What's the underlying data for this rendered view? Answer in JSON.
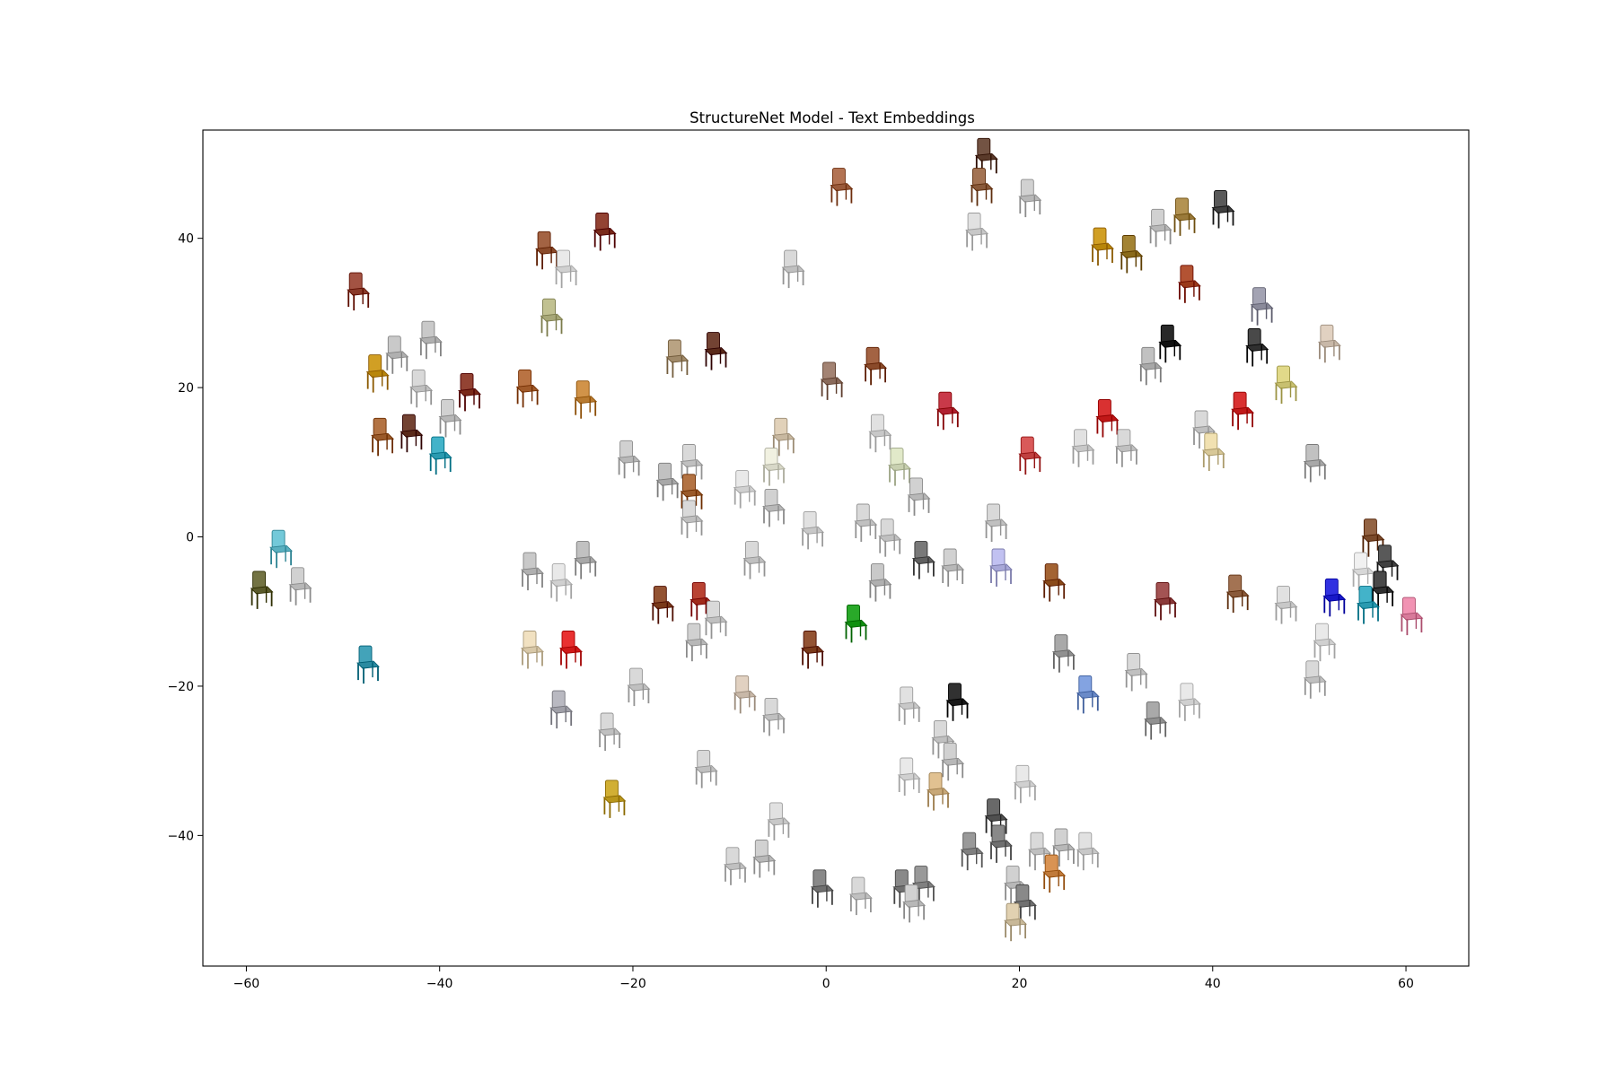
{
  "chart_data": {
    "type": "scatter",
    "title": "StructureNet Model - Text Embeddings",
    "xlabel": "",
    "ylabel": "",
    "xlim": [
      -64.5,
      66.5
    ],
    "ylim": [
      -57.5,
      54.5
    ],
    "xticks": [
      -60,
      -40,
      -20,
      0,
      20,
      40,
      60
    ],
    "yticks": [
      -40,
      -20,
      0,
      20,
      40
    ],
    "xtick_labels": [
      "−60",
      "−40",
      "−20",
      "0",
      "20",
      "40",
      "60"
    ],
    "ytick_labels": [
      "−40",
      "−20",
      "0",
      "20",
      "40"
    ],
    "grid": false,
    "legend": "none",
    "marker": "chair thumbnail image",
    "series": [
      {
        "points": [
          {
            "x": 1.5,
            "y": 46.5,
            "color": "#9a5a3a"
          },
          {
            "x": 16.5,
            "y": 50.5,
            "color": "#5a3a2a"
          },
          {
            "x": 16.0,
            "y": 46.5,
            "color": "#8a5a3a"
          },
          {
            "x": 21.0,
            "y": 45.0,
            "color": "#b8b8b8"
          },
          {
            "x": 15.5,
            "y": 40.5,
            "color": "#c8c8c8"
          },
          {
            "x": -3.5,
            "y": 35.5,
            "color": "#c0c0c0"
          },
          {
            "x": -29.0,
            "y": 38.0,
            "color": "#8a4a2a"
          },
          {
            "x": -23.0,
            "y": 40.5,
            "color": "#7a2a1a"
          },
          {
            "x": -27.0,
            "y": 35.5,
            "color": "#d0d0d0"
          },
          {
            "x": -28.5,
            "y": 29.0,
            "color": "#a8a878"
          },
          {
            "x": -48.5,
            "y": 32.5,
            "color": "#8a3a2a"
          },
          {
            "x": -44.5,
            "y": 24.0,
            "color": "#b0b0b0"
          },
          {
            "x": -41.0,
            "y": 26.0,
            "color": "#b0b0b0"
          },
          {
            "x": -46.5,
            "y": 21.5,
            "color": "#b8860b"
          },
          {
            "x": -42.0,
            "y": 19.5,
            "color": "#c0c0c0"
          },
          {
            "x": -37.0,
            "y": 19.0,
            "color": "#7a2a1a"
          },
          {
            "x": -39.0,
            "y": 15.5,
            "color": "#b8b8b8"
          },
          {
            "x": -31.0,
            "y": 19.5,
            "color": "#a05a2a"
          },
          {
            "x": -25.0,
            "y": 18.0,
            "color": "#b87a30"
          },
          {
            "x": -46.0,
            "y": 13.0,
            "color": "#9a5a2a"
          },
          {
            "x": -43.0,
            "y": 13.5,
            "color": "#5a2a1a"
          },
          {
            "x": -40.0,
            "y": 10.5,
            "color": "#2a9ab0"
          },
          {
            "x": -15.5,
            "y": 23.5,
            "color": "#a08a6a"
          },
          {
            "x": -11.5,
            "y": 24.5,
            "color": "#5a2a1a"
          },
          {
            "x": 0.5,
            "y": 20.5,
            "color": "#8a6a5a"
          },
          {
            "x": 5.0,
            "y": 22.5,
            "color": "#8a4a2a"
          },
          {
            "x": 12.5,
            "y": 16.5,
            "color": "#b02030"
          },
          {
            "x": -20.5,
            "y": 10.0,
            "color": "#b8b8b8"
          },
          {
            "x": -16.5,
            "y": 7.0,
            "color": "#a8a8a8"
          },
          {
            "x": -14.0,
            "y": 9.5,
            "color": "#c0c0c0"
          },
          {
            "x": -14.0,
            "y": 5.5,
            "color": "#9a5a2a"
          },
          {
            "x": -14.0,
            "y": 2.0,
            "color": "#c0c0c0"
          },
          {
            "x": -4.5,
            "y": 13.0,
            "color": "#c8b8a0"
          },
          {
            "x": -5.5,
            "y": 9.0,
            "color": "#d8d8c8"
          },
          {
            "x": -8.5,
            "y": 6.0,
            "color": "#d0d0d0"
          },
          {
            "x": -5.5,
            "y": 3.5,
            "color": "#b8b8b8"
          },
          {
            "x": 5.5,
            "y": 13.5,
            "color": "#c8c8c8"
          },
          {
            "x": 7.5,
            "y": 9.0,
            "color": "#c8d0b0"
          },
          {
            "x": 9.5,
            "y": 5.0,
            "color": "#b8b8b8"
          },
          {
            "x": 4.0,
            "y": 1.5,
            "color": "#c0c0c0"
          },
          {
            "x": -1.5,
            "y": 0.5,
            "color": "#c8c8c8"
          },
          {
            "x": 6.5,
            "y": -0.5,
            "color": "#c0c0c0"
          },
          {
            "x": 17.5,
            "y": 1.5,
            "color": "#c0c0c0"
          },
          {
            "x": -7.5,
            "y": -3.5,
            "color": "#c0c0c0"
          },
          {
            "x": 10.0,
            "y": -3.5,
            "color": "#606060"
          },
          {
            "x": 13.0,
            "y": -4.5,
            "color": "#b8b8b8"
          },
          {
            "x": 18.0,
            "y": -4.5,
            "color": "#a8a8d8"
          },
          {
            "x": 23.5,
            "y": -6.5,
            "color": "#8a4a1a"
          },
          {
            "x": 21.0,
            "y": 10.5,
            "color": "#c04040"
          },
          {
            "x": 26.5,
            "y": 11.5,
            "color": "#c8c8c8"
          },
          {
            "x": 29.0,
            "y": 15.5,
            "color": "#c01818"
          },
          {
            "x": 31.0,
            "y": 11.5,
            "color": "#c0c0c0"
          },
          {
            "x": 28.5,
            "y": 38.5,
            "color": "#b8860b"
          },
          {
            "x": 31.5,
            "y": 37.5,
            "color": "#8a6a1a"
          },
          {
            "x": 34.5,
            "y": 41.0,
            "color": "#b8b8b8"
          },
          {
            "x": 37.0,
            "y": 42.5,
            "color": "#9a7a3a"
          },
          {
            "x": 41.0,
            "y": 43.5,
            "color": "#404040"
          },
          {
            "x": 37.5,
            "y": 33.5,
            "color": "#9a3a1a"
          },
          {
            "x": 45.0,
            "y": 30.5,
            "color": "#8a8a9a"
          },
          {
            "x": 35.5,
            "y": 25.5,
            "color": "#101010"
          },
          {
            "x": 33.5,
            "y": 22.5,
            "color": "#a8a8a8"
          },
          {
            "x": 44.5,
            "y": 25.0,
            "color": "#303030"
          },
          {
            "x": 52.0,
            "y": 25.5,
            "color": "#c8b8a8"
          },
          {
            "x": 47.5,
            "y": 20.0,
            "color": "#c8c070"
          },
          {
            "x": 43.0,
            "y": 16.5,
            "color": "#c01818"
          },
          {
            "x": 39.0,
            "y": 14.0,
            "color": "#c0c0c0"
          },
          {
            "x": 40.0,
            "y": 11.0,
            "color": "#d8c898"
          },
          {
            "x": 50.5,
            "y": 9.5,
            "color": "#a8a8a8"
          },
          {
            "x": -56.5,
            "y": -2.0,
            "color": "#5ab0c0"
          },
          {
            "x": -58.5,
            "y": -7.5,
            "color": "#5a5a2a"
          },
          {
            "x": -54.5,
            "y": -7.0,
            "color": "#b8b8b8"
          },
          {
            "x": -47.5,
            "y": -17.5,
            "color": "#2a8aa0"
          },
          {
            "x": -30.5,
            "y": -5.0,
            "color": "#b0b0b0"
          },
          {
            "x": -25.0,
            "y": -3.5,
            "color": "#a8a8a8"
          },
          {
            "x": -27.5,
            "y": -6.5,
            "color": "#d0d0d0"
          },
          {
            "x": -30.5,
            "y": -15.5,
            "color": "#d8c8a8"
          },
          {
            "x": -26.5,
            "y": -15.5,
            "color": "#d01818"
          },
          {
            "x": -17.0,
            "y": -9.5,
            "color": "#7a3a1a"
          },
          {
            "x": -13.0,
            "y": -9.0,
            "color": "#a02a1a"
          },
          {
            "x": -11.5,
            "y": -11.5,
            "color": "#c0c0c0"
          },
          {
            "x": -13.5,
            "y": -14.5,
            "color": "#b8b8b8"
          },
          {
            "x": -1.5,
            "y": -15.5,
            "color": "#7a3a1a"
          },
          {
            "x": 3.0,
            "y": -12.0,
            "color": "#109010"
          },
          {
            "x": 5.5,
            "y": -6.5,
            "color": "#b0b0b0"
          },
          {
            "x": -19.5,
            "y": -20.5,
            "color": "#c0c0c0"
          },
          {
            "x": -27.5,
            "y": -23.5,
            "color": "#a0a0a8"
          },
          {
            "x": -22.5,
            "y": -26.5,
            "color": "#c0c0c0"
          },
          {
            "x": -8.5,
            "y": -21.5,
            "color": "#c8b8a8"
          },
          {
            "x": -5.5,
            "y": -24.5,
            "color": "#c0c0c0"
          },
          {
            "x": -12.5,
            "y": -31.5,
            "color": "#c0c0c0"
          },
          {
            "x": -22.0,
            "y": -35.5,
            "color": "#b8961b"
          },
          {
            "x": -5.0,
            "y": -38.5,
            "color": "#c8c8c8"
          },
          {
            "x": -9.5,
            "y": -44.5,
            "color": "#c0c0c0"
          },
          {
            "x": -6.5,
            "y": -43.5,
            "color": "#b8b8b8"
          },
          {
            "x": -0.5,
            "y": -47.5,
            "color": "#707070"
          },
          {
            "x": 3.5,
            "y": -48.5,
            "color": "#c0c0c0"
          },
          {
            "x": 8.0,
            "y": -47.5,
            "color": "#707070"
          },
          {
            "x": 10.0,
            "y": -47.0,
            "color": "#808080"
          },
          {
            "x": 9.0,
            "y": -49.5,
            "color": "#b8b8b8"
          },
          {
            "x": 8.5,
            "y": -23.0,
            "color": "#c8c8c8"
          },
          {
            "x": 13.5,
            "y": -22.5,
            "color": "#181818"
          },
          {
            "x": 12.0,
            "y": -27.5,
            "color": "#c0c0c0"
          },
          {
            "x": 13.0,
            "y": -30.5,
            "color": "#b8b8b8"
          },
          {
            "x": 8.5,
            "y": -32.5,
            "color": "#d0d0d0"
          },
          {
            "x": 11.5,
            "y": -34.5,
            "color": "#c8a878"
          },
          {
            "x": 20.5,
            "y": -33.5,
            "color": "#d0d0d0"
          },
          {
            "x": 17.5,
            "y": -38.0,
            "color": "#505050"
          },
          {
            "x": 18.0,
            "y": -41.5,
            "color": "#707070"
          },
          {
            "x": 15.0,
            "y": -42.5,
            "color": "#808080"
          },
          {
            "x": 22.0,
            "y": -42.5,
            "color": "#c0c0c0"
          },
          {
            "x": 24.5,
            "y": -42.0,
            "color": "#b8b8b8"
          },
          {
            "x": 27.0,
            "y": -42.5,
            "color": "#c8c8c8"
          },
          {
            "x": 23.5,
            "y": -45.5,
            "color": "#c07a3a"
          },
          {
            "x": 19.5,
            "y": -47.0,
            "color": "#b8b8b8"
          },
          {
            "x": 20.5,
            "y": -49.5,
            "color": "#707070"
          },
          {
            "x": 19.5,
            "y": -52.0,
            "color": "#c8b898"
          },
          {
            "x": 24.5,
            "y": -16.0,
            "color": "#909090"
          },
          {
            "x": 27.0,
            "y": -21.5,
            "color": "#6a8ac8"
          },
          {
            "x": 32.0,
            "y": -18.5,
            "color": "#c0c0c0"
          },
          {
            "x": 34.0,
            "y": -25.0,
            "color": "#909090"
          },
          {
            "x": 37.5,
            "y": -22.5,
            "color": "#d0d0d0"
          },
          {
            "x": 35.0,
            "y": -9.0,
            "color": "#8a3a3a"
          },
          {
            "x": 42.5,
            "y": -8.0,
            "color": "#8a5a3a"
          },
          {
            "x": 47.5,
            "y": -9.5,
            "color": "#c8c8c8"
          },
          {
            "x": 51.5,
            "y": -14.5,
            "color": "#d0d0d0"
          },
          {
            "x": 50.5,
            "y": -19.5,
            "color": "#c0c0c0"
          },
          {
            "x": 52.5,
            "y": -8.5,
            "color": "#1818c8"
          },
          {
            "x": 56.5,
            "y": -0.5,
            "color": "#7a4a2a"
          },
          {
            "x": 58.0,
            "y": -4.0,
            "color": "#404040"
          },
          {
            "x": 55.5,
            "y": -5.0,
            "color": "#d8d8d8"
          },
          {
            "x": 57.5,
            "y": -7.5,
            "color": "#303030"
          },
          {
            "x": 56.0,
            "y": -9.5,
            "color": "#2a9ab0"
          },
          {
            "x": 60.5,
            "y": -11.0,
            "color": "#d87a9a"
          }
        ]
      }
    ]
  }
}
